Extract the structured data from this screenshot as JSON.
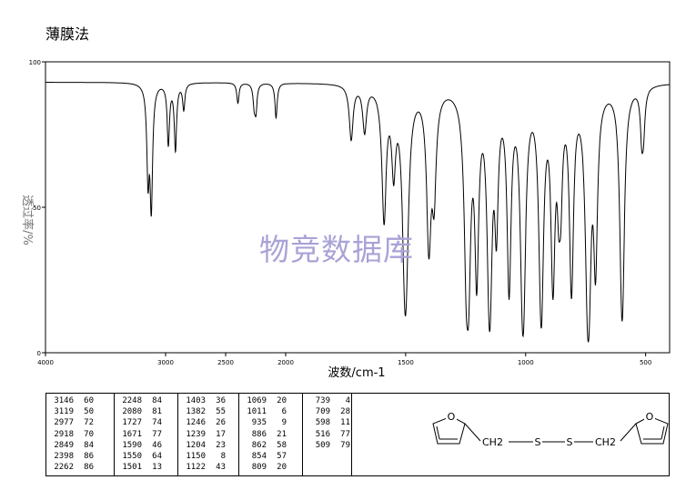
{
  "header": {
    "title": "薄膜法"
  },
  "watermark": "物竞数据库",
  "chart_data": {
    "type": "line",
    "title": "",
    "xlabel": "波数/cm-1",
    "ylabel": "透过率/%",
    "xlim": [
      4000,
      400
    ],
    "ylim": [
      0,
      100
    ],
    "x_ticks": [
      4000,
      3000,
      2500,
      2000,
      1500,
      1000,
      500
    ],
    "y_ticks": [
      0,
      50,
      100
    ],
    "grid": false,
    "baseline": 93,
    "peaks": [
      {
        "wavenumber": 3146,
        "transmittance": 60
      },
      {
        "wavenumber": 3119,
        "transmittance": 50
      },
      {
        "wavenumber": 2977,
        "transmittance": 72
      },
      {
        "wavenumber": 2918,
        "transmittance": 70
      },
      {
        "wavenumber": 2849,
        "transmittance": 84
      },
      {
        "wavenumber": 2398,
        "transmittance": 86
      },
      {
        "wavenumber": 2262,
        "transmittance": 86
      },
      {
        "wavenumber": 2248,
        "transmittance": 84
      },
      {
        "wavenumber": 2080,
        "transmittance": 81
      },
      {
        "wavenumber": 1727,
        "transmittance": 74
      },
      {
        "wavenumber": 1671,
        "transmittance": 77
      },
      {
        "wavenumber": 1590,
        "transmittance": 46
      },
      {
        "wavenumber": 1550,
        "transmittance": 64
      },
      {
        "wavenumber": 1501,
        "transmittance": 13
      },
      {
        "wavenumber": 1403,
        "transmittance": 36
      },
      {
        "wavenumber": 1382,
        "transmittance": 55
      },
      {
        "wavenumber": 1246,
        "transmittance": 26
      },
      {
        "wavenumber": 1239,
        "transmittance": 17
      },
      {
        "wavenumber": 1204,
        "transmittance": 23
      },
      {
        "wavenumber": 1150,
        "transmittance": 8
      },
      {
        "wavenumber": 1122,
        "transmittance": 43
      },
      {
        "wavenumber": 1069,
        "transmittance": 20
      },
      {
        "wavenumber": 1011,
        "transmittance": 6
      },
      {
        "wavenumber": 935,
        "transmittance": 9
      },
      {
        "wavenumber": 886,
        "transmittance": 21
      },
      {
        "wavenumber": 862,
        "transmittance": 58
      },
      {
        "wavenumber": 854,
        "transmittance": 57
      },
      {
        "wavenumber": 809,
        "transmittance": 20
      },
      {
        "wavenumber": 739,
        "transmittance": 4
      },
      {
        "wavenumber": 709,
        "transmittance": 28
      },
      {
        "wavenumber": 598,
        "transmittance": 11
      },
      {
        "wavenumber": 516,
        "transmittance": 77
      },
      {
        "wavenumber": 509,
        "transmittance": 79
      }
    ]
  },
  "peak_table": {
    "columns": [
      [
        [
          "3146",
          "60"
        ],
        [
          "3119",
          "50"
        ],
        [
          "2977",
          "72"
        ],
        [
          "2918",
          "70"
        ],
        [
          "2849",
          "84"
        ],
        [
          "2398",
          "86"
        ],
        [
          "2262",
          "86"
        ]
      ],
      [
        [
          "2248",
          "84"
        ],
        [
          "2080",
          "81"
        ],
        [
          "1727",
          "74"
        ],
        [
          "1671",
          "77"
        ],
        [
          "1590",
          "46"
        ],
        [
          "1550",
          "64"
        ],
        [
          "1501",
          "13"
        ]
      ],
      [
        [
          "1403",
          "36"
        ],
        [
          "1382",
          "55"
        ],
        [
          "1246",
          "26"
        ],
        [
          "1239",
          "17"
        ],
        [
          "1204",
          "23"
        ],
        [
          "1150",
          "8"
        ],
        [
          "1122",
          "43"
        ]
      ],
      [
        [
          "1069",
          "20"
        ],
        [
          "1011",
          "6"
        ],
        [
          "935",
          "9"
        ],
        [
          "886",
          "21"
        ],
        [
          "862",
          "58"
        ],
        [
          "854",
          "57"
        ],
        [
          "809",
          "20"
        ]
      ],
      [
        [
          "739",
          "4"
        ],
        [
          "709",
          "28"
        ],
        [
          "598",
          "11"
        ],
        [
          "516",
          "77"
        ],
        [
          "509",
          "79"
        ]
      ]
    ]
  },
  "structure": {
    "o_left": "O",
    "ch2_left": "CH2",
    "s1": "S",
    "s2": "S",
    "ch2_right": "CH2",
    "o_right": "O"
  }
}
